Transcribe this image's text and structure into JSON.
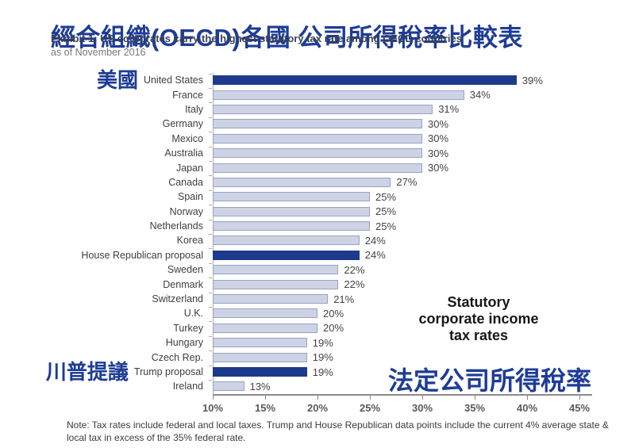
{
  "header": {
    "title": "經合組織(OECD)各國 公司所得稅率比較表",
    "subtitle": "Exhibit 1: US corporates carry the highest statutory tax rate among OECD countries",
    "as_of": "as of November 2016"
  },
  "chart_data": {
    "type": "bar",
    "orientation": "horizontal",
    "title": "Statutory corporate income tax rates",
    "categories": [
      "United States",
      "France",
      "Italy",
      "Germany",
      "Mexico",
      "Australia",
      "Japan",
      "Canada",
      "Spain",
      "Norway",
      "Netherlands",
      "Korea",
      "House Republican proposal",
      "Sweden",
      "Denmark",
      "Switzerland",
      "U.K.",
      "Turkey",
      "Hungary",
      "Czech Rep.",
      "Trump proposal",
      "Ireland"
    ],
    "values": [
      39,
      34,
      31,
      30,
      30,
      30,
      30,
      27,
      25,
      25,
      25,
      24,
      24,
      22,
      22,
      21,
      20,
      20,
      19,
      19,
      19,
      13
    ],
    "value_labels": [
      "39%",
      "34%",
      "31%",
      "30%",
      "30%",
      "30%",
      "30%",
      "27%",
      "25%",
      "25%",
      "25%",
      "24%",
      "24%",
      "22%",
      "22%",
      "21%",
      "20%",
      "20%",
      "19%",
      "19%",
      "19%",
      "13%"
    ],
    "highlighted_categories": [
      "United States",
      "House Republican proposal",
      "Trump proposal"
    ],
    "xlim": [
      10,
      45
    ],
    "x_tick_step": 5,
    "x_tick_labels": [
      "10%",
      "15%",
      "20%",
      "25%",
      "30%",
      "35%",
      "40%",
      "45%"
    ],
    "grid": false,
    "legend": "none"
  },
  "annotations": {
    "zh_row_labels": [
      {
        "category": "United States",
        "label": "美國"
      },
      {
        "category": "Trump proposal",
        "label": "川普提議"
      }
    ],
    "statutory_lines": [
      "Statutory",
      "corporate income",
      "tax rates"
    ],
    "statutory_zh": "法定公司所得稅率"
  },
  "note": "Note: Tax rates include federal and local taxes. Trump and House Republican data points include the current 4% average state & local tax in excess of the 35% federal rate.",
  "colors": {
    "accent_blue": "#1e3c96",
    "highlight_bar": "#1d3a8c",
    "bar_fill": "#cdd3e5",
    "bar_border": "#98a3c2"
  }
}
